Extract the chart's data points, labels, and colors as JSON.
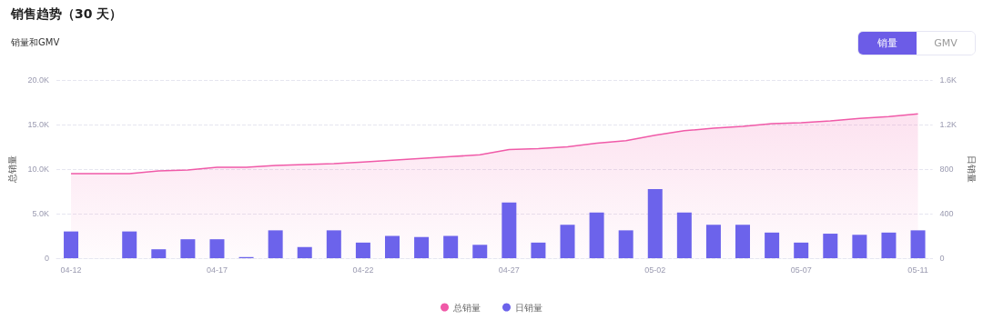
{
  "chart_data": {
    "type": "bar",
    "title": "销售趋势（30 天）",
    "subtitle": "销量和GMV",
    "annotations": [
      "销量",
      "GMV"
    ],
    "ylabel": "总销量",
    "y2label": "日销量",
    "categories": [
      "04-12",
      null,
      null,
      null,
      null,
      "04-17",
      null,
      null,
      null,
      null,
      "04-22",
      null,
      null,
      null,
      null,
      "04-27",
      null,
      null,
      null,
      null,
      "05-02",
      null,
      null,
      null,
      null,
      "05-07",
      null,
      null,
      null,
      "05-11"
    ],
    "series": [
      {
        "name": "总销量",
        "type": "area",
        "color": "#f05aa8",
        "values": [
          9500,
          9500,
          9500,
          9800,
          9900,
          10200,
          10200,
          10400,
          10500,
          10600,
          10800,
          11000,
          11200,
          11400,
          11600,
          12200,
          12300,
          12500,
          12900,
          13200,
          13800,
          14300,
          14600,
          14800,
          15100,
          15200,
          15400,
          15700,
          15900,
          16200
        ]
      },
      {
        "name": "日销量",
        "axis": "y2",
        "color": "#6c63eb",
        "values": [
          240,
          0,
          240,
          80,
          170,
          170,
          10,
          250,
          100,
          250,
          140,
          200,
          190,
          200,
          120,
          500,
          140,
          300,
          410,
          250,
          620,
          410,
          300,
          300,
          230,
          140,
          220,
          210,
          230,
          250
        ]
      }
    ],
    "ylim": [
      0,
      20000
    ],
    "yticks": [
      0,
      {
        "value": 5000,
        "label": "5.0K"
      },
      {
        "value": 10000,
        "label": "10.0K"
      },
      {
        "value": 15000,
        "label": "15.0K"
      },
      {
        "value": 20000,
        "label": "20.0K"
      }
    ],
    "y2lim": [
      0,
      1600
    ],
    "y2ticks": [
      0,
      400,
      800,
      {
        "value": 1200,
        "label": "1.2K"
      },
      {
        "value": 1600,
        "label": "1.6K"
      }
    ],
    "grid": "y",
    "legend": "bottom",
    "marker": "none",
    "line_style": "solid"
  }
}
